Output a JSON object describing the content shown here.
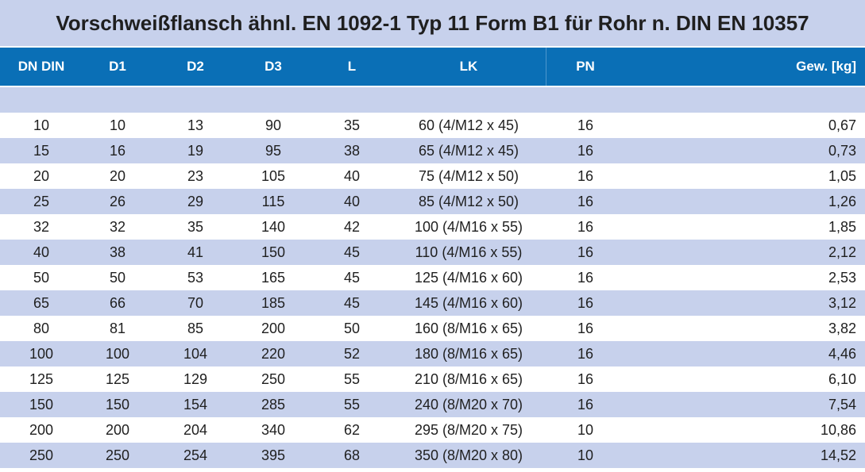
{
  "title": "Vorschweißflansch ähnl. EN 1092-1 Typ 11 Form B1 für Rohr n. DIN EN 10357",
  "table": {
    "headers": [
      "DN DIN",
      "D1",
      "D2",
      "D3",
      "L",
      "LK",
      "PN",
      "Gew. [kg]"
    ],
    "rows": [
      [
        "10",
        "10",
        "13",
        "90",
        "35",
        "60 (4/M12 x 45)",
        "16",
        "0,67"
      ],
      [
        "15",
        "16",
        "19",
        "95",
        "38",
        "65 (4/M12 x 45)",
        "16",
        "0,73"
      ],
      [
        "20",
        "20",
        "23",
        "105",
        "40",
        "75 (4/M12 x 50)",
        "16",
        "1,05"
      ],
      [
        "25",
        "26",
        "29",
        "115",
        "40",
        "85 (4/M12 x 50)",
        "16",
        "1,26"
      ],
      [
        "32",
        "32",
        "35",
        "140",
        "42",
        "100 (4/M16 x 55)",
        "16",
        "1,85"
      ],
      [
        "40",
        "38",
        "41",
        "150",
        "45",
        "110 (4/M16 x 55)",
        "16",
        "2,12"
      ],
      [
        "50",
        "50",
        "53",
        "165",
        "45",
        "125 (4/M16 x 60)",
        "16",
        "2,53"
      ],
      [
        "65",
        "66",
        "70",
        "185",
        "45",
        "145 (4/M16 x 60)",
        "16",
        "3,12"
      ],
      [
        "80",
        "81",
        "85",
        "200",
        "50",
        "160 (8/M16 x 65)",
        "16",
        "3,82"
      ],
      [
        "100",
        "100",
        "104",
        "220",
        "52",
        "180 (8/M16 x 65)",
        "16",
        "4,46"
      ],
      [
        "125",
        "125",
        "129",
        "250",
        "55",
        "210 (8/M16 x 65)",
        "16",
        "6,10"
      ],
      [
        "150",
        "150",
        "154",
        "285",
        "55",
        "240 (8/M20 x 70)",
        "16",
        "7,54"
      ],
      [
        "200",
        "200",
        "204",
        "340",
        "62",
        "295 (8/M20 x 75)",
        "10",
        "10,86"
      ],
      [
        "250",
        "250",
        "254",
        "395",
        "68",
        "350 (8/M20 x 80)",
        "10",
        "14,52"
      ]
    ]
  }
}
